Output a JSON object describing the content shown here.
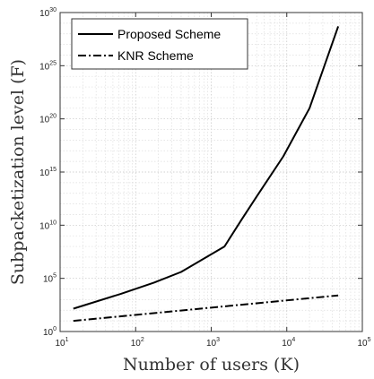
{
  "chart_data": {
    "type": "line",
    "xlabel": "Number of users (K)",
    "ylabel": "Subpacketization level (F)",
    "xscale": "log",
    "yscale": "log",
    "xlim": [
      10,
      100000
    ],
    "ylim": [
      1,
      1e+30
    ],
    "grid": true,
    "legend_position": "top-left",
    "x_ticks": [
      {
        "base": "10",
        "exp": "1",
        "value": 10
      },
      {
        "base": "10",
        "exp": "2",
        "value": 100
      },
      {
        "base": "10",
        "exp": "3",
        "value": 1000
      },
      {
        "base": "10",
        "exp": "4",
        "value": 10000
      },
      {
        "base": "10",
        "exp": "5",
        "value": 100000
      }
    ],
    "y_ticks": [
      {
        "base": "10",
        "exp": "0",
        "value": 1
      },
      {
        "base": "10",
        "exp": "5",
        "value": 100000.0
      },
      {
        "base": "10",
        "exp": "10",
        "value": 10000000000.0
      },
      {
        "base": "10",
        "exp": "15",
        "value": 1000000000000000.0
      },
      {
        "base": "10",
        "exp": "20",
        "value": 1e+20
      },
      {
        "base": "10",
        "exp": "25",
        "value": 1e+25
      },
      {
        "base": "10",
        "exp": "30",
        "value": 1e+30
      }
    ],
    "series": [
      {
        "name": "Proposed Scheme",
        "style": "solid",
        "color": "#000000",
        "x": [
          15,
          64,
          175,
          400,
          1500,
          2500,
          4000,
          9000,
          20000,
          48000
        ],
        "y": [
          140,
          3500,
          40000,
          400000.0,
          100000000.0,
          30000000000.0,
          5000000000000.0,
          3e+16,
          1e+21,
          5e+28
        ]
      },
      {
        "name": "KNR Scheme",
        "style": "dash-dot",
        "color": "#000000",
        "x": [
          15,
          48000
        ],
        "y": [
          10,
          2500
        ]
      }
    ]
  }
}
